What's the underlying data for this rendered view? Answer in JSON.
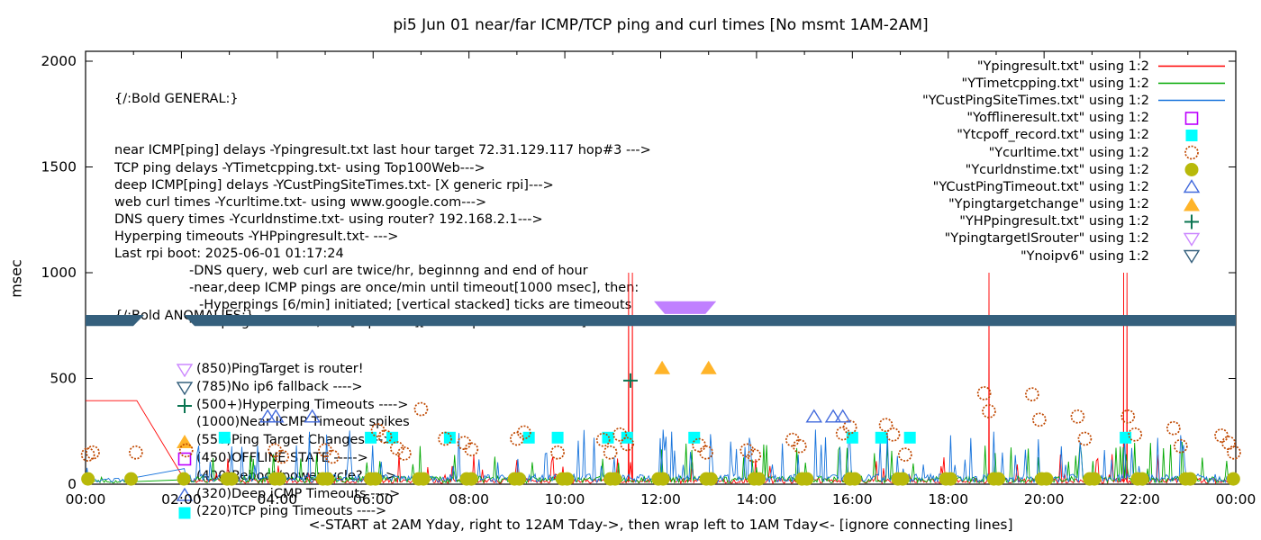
{
  "title": "pi5 Jun 01  near/far ICMP/TCP ping and curl times [No msmt 1AM-2AM]",
  "general_block": {
    "heading": "{/:Bold GENERAL:}",
    "lines": [
      {
        "text": "near ICMP[ping] delays -Ypingresult.txt last hour target 72.31.129.117 hop#3 --->",
        "indent": 0
      },
      {
        "text": "TCP ping delays -YTimetcpping.txt- using Top100Web--->",
        "indent": 0
      },
      {
        "text": "deep ICMP[ping] delays -YCustPingSiteTimes.txt- [X generic rpi]--->",
        "indent": 0
      },
      {
        "text": "web curl times -Ycurltime.txt- using www.google.com--->",
        "indent": 0
      },
      {
        "text": "DNS query times -Ycurldnstime.txt- using router? 192.168.2.1--->",
        "indent": 0
      },
      {
        "text": "Hyperping timeouts -YHPpingresult.txt- --->",
        "indent": 0
      },
      {
        "text": "Last rpi boot: 2025-06-01 01:17:24",
        "indent": 0
      },
      {
        "text": "-DNS query, web curl are twice/hr, beginnng and end of hour",
        "indent": 1
      },
      {
        "text": "-near,deep ICMP pings are once/min until timeout[1000 msec], then:",
        "indent": 1
      },
      {
        "text": "-Hyperpings [6/min] initiated; [vertical stacked] ticks are timeouts",
        "indent": 2
      },
      {
        "text": "-TCP pings are once/min [if plotted][use Ytcpoff for timeouts]",
        "indent": 1
      }
    ]
  },
  "anomalies_block": {
    "heading": "{/:Bold ANOMALIES:}",
    "items": [
      {
        "marker": "tri-down-open",
        "color": "#cc88ff",
        "text": "(850)PingTarget is router!"
      },
      {
        "marker": "tri-down-open",
        "color": "#35607d",
        "text": "(785)No ip6 fallback ---->",
        "obscured_by_band": true
      },
      {
        "marker": "plus",
        "color": "#0b7552",
        "text": "(500+)Hyperping Timeouts ---->"
      },
      {
        "marker": "none",
        "color": "#000000",
        "text": "(1000)Near ICMP Timeout spikes"
      },
      {
        "marker": "tri-up-filled",
        "color": "#ffb429",
        "text": "(550)Ping Target Changes --->"
      },
      {
        "marker": "square-open",
        "color": "#bd00ff",
        "text": "(450)OFFLINE STATE ----->"
      },
      {
        "marker": "none",
        "color": "#000000",
        "text": "(400)Reboot/powercycle? ---->"
      },
      {
        "marker": "tri-up-open",
        "color": "#4169dc",
        "text": "(320)Deep iCMP Timeouts ---->"
      },
      {
        "marker": "square-filled",
        "color": "#00ffff",
        "text": "(220)TCP ping Timeouts ---->"
      }
    ]
  },
  "legend": [
    {
      "label": "\"Ypingresult.txt\" using 1:2",
      "swatch": "line",
      "color": "#ff0000"
    },
    {
      "label": "\"YTimetcpping.txt\" using 1:2",
      "swatch": "line",
      "color": "#00a800"
    },
    {
      "label": "\"YCustPingSiteTimes.txt\" using 1:2",
      "swatch": "line",
      "color": "#1874dc"
    },
    {
      "label": "\"Yofflineresult.txt\" using 1:2",
      "swatch": "square-open",
      "color": "#bd00ff"
    },
    {
      "label": "\"Ytcpoff_record.txt\" using 1:2",
      "swatch": "square-filled",
      "color": "#00ffff"
    },
    {
      "label": "\"Ycurltime.txt\" using 1:2",
      "swatch": "circle-open",
      "color": "#c04800"
    },
    {
      "label": "\"Ycurldnstime.txt\" using 1:2",
      "swatch": "circle-filled",
      "color": "#b8b90a"
    },
    {
      "label": "\"YCustPingTimeout.txt\" using 1:2",
      "swatch": "tri-up-open",
      "color": "#4169dc"
    },
    {
      "label": "\"Ypingtargetchange\" using 1:2",
      "swatch": "tri-up-filled",
      "color": "#ffb429"
    },
    {
      "label": "\"YHPpingresult.txt\" using 1:2",
      "swatch": "plus",
      "color": "#0b7552"
    },
    {
      "label": "\"YpingtargetISrouter\" using 1:2",
      "swatch": "tri-down-open",
      "color": "#cc88ff"
    },
    {
      "label": "\"Ynoipv6\" using 1:2",
      "swatch": "tri-down-open",
      "color": "#35607d"
    }
  ],
  "chart_data": {
    "type": "line+scatter",
    "x": {
      "label": "<-START at 2AM Yday, right to 12AM Tday->, then wrap left to 1AM Tday<- [ignore connecting lines]",
      "unit": "hour of day",
      "min": 0,
      "max": 24,
      "major_tick_step_hours": 2,
      "minor_tick_step_hours": 1,
      "tick_labels": [
        "00:00",
        "02:00",
        "04:00",
        "06:00",
        "08:00",
        "10:00",
        "12:00",
        "14:00",
        "16:00",
        "18:00",
        "20:00",
        "22:00",
        "00:00"
      ]
    },
    "y": {
      "label": "msec",
      "min": 0,
      "max": 2000,
      "ticks": [
        0,
        500,
        1000,
        1500,
        2000
      ]
    },
    "grid": false,
    "legend_position": "top-right",
    "series": [
      {
        "id": "near-icmp",
        "label": "Ypingresult.txt (near ICMP ping)",
        "kind": "noise-line",
        "color": "#ff0000",
        "flat_segment_msec": 395,
        "flat_until_hour": 1.07,
        "gap_hours": [
          1.07,
          2.07
        ],
        "timeout_value_msec": 1000,
        "timeout_spikes_hours": [
          11.33,
          11.41,
          18.85,
          21.66,
          21.73
        ],
        "noise": {
          "base_min": 4,
          "base_max": 28,
          "spike_prob": 0.05,
          "spike_min": 40,
          "spike_max": 150,
          "seed": 11
        }
      },
      {
        "id": "tcp-ping",
        "label": "YTimetcpping.txt (TCP ping)",
        "kind": "noise-line",
        "color": "#00a800",
        "gap_hours": [
          1.02,
          2.06
        ],
        "noise": {
          "base_min": 6,
          "base_max": 38,
          "spike_prob": 0.06,
          "spike_min": 60,
          "spike_max": 200,
          "seed": 22
        }
      },
      {
        "id": "deep-icmp",
        "label": "YCustPingSiteTimes.txt (deep ICMP ping)",
        "kind": "noise-line",
        "color": "#1874dc",
        "gap_hours": [
          1.02,
          2.06
        ],
        "noise": {
          "base_min": 8,
          "base_max": 48,
          "spike_prob": 0.08,
          "spike_min": 70,
          "spike_max": 260,
          "seed": 33
        }
      },
      {
        "id": "tcp-timeouts",
        "label": "Ytcpoff_record.txt (TCP ping timeouts)",
        "kind": "scatter",
        "marker": "square-filled",
        "color": "#00ffff",
        "value_msec": 220,
        "hours": [
          2.9,
          5.95,
          6.4,
          7.6,
          9.25,
          9.85,
          10.9,
          11.3,
          12.7,
          16.0,
          16.6,
          17.2,
          21.7
        ]
      },
      {
        "id": "curl",
        "label": "Ycurltime.txt (web curl)",
        "kind": "scatter",
        "marker": "circle-open",
        "color": "#c04800",
        "points": [
          [
            0.05,
            140
          ],
          [
            0.15,
            150
          ],
          [
            1.05,
            150
          ],
          [
            2.1,
            160
          ],
          [
            3.95,
            160
          ],
          [
            4.1,
            130
          ],
          [
            5.0,
            160
          ],
          [
            5.15,
            130
          ],
          [
            6.1,
            255
          ],
          [
            6.25,
            225
          ],
          [
            6.5,
            170
          ],
          [
            6.65,
            145
          ],
          [
            7.0,
            355
          ],
          [
            7.5,
            215
          ],
          [
            7.9,
            195
          ],
          [
            8.05,
            165
          ],
          [
            9.0,
            215
          ],
          [
            9.15,
            245
          ],
          [
            9.85,
            150
          ],
          [
            10.8,
            210
          ],
          [
            10.95,
            150
          ],
          [
            11.15,
            235
          ],
          [
            11.3,
            190
          ],
          [
            12.8,
            185
          ],
          [
            12.95,
            150
          ],
          [
            13.8,
            160
          ],
          [
            13.95,
            135
          ],
          [
            14.75,
            210
          ],
          [
            14.9,
            180
          ],
          [
            15.8,
            240
          ],
          [
            15.95,
            270
          ],
          [
            16.7,
            280
          ],
          [
            16.85,
            235
          ],
          [
            17.1,
            140
          ],
          [
            18.75,
            430
          ],
          [
            18.85,
            345
          ],
          [
            19.75,
            425
          ],
          [
            19.9,
            305
          ],
          [
            20.7,
            320
          ],
          [
            20.85,
            215
          ],
          [
            21.75,
            320
          ],
          [
            21.9,
            235
          ],
          [
            22.7,
            265
          ],
          [
            22.85,
            180
          ],
          [
            23.7,
            230
          ],
          [
            23.85,
            195
          ],
          [
            23.97,
            150
          ]
        ]
      },
      {
        "id": "dns",
        "label": "Ycurldnstime.txt (DNS query)",
        "kind": "scatter",
        "marker": "circle-filled",
        "color": "#b8b90a",
        "value_msec": 25,
        "hours": [
          0.05,
          0.95,
          2.05,
          2.95,
          3.05,
          3.95,
          4.05,
          4.95,
          5.05,
          5.95,
          6.05,
          6.95,
          7.05,
          7.95,
          8.05,
          8.95,
          9.05,
          9.95,
          10.05,
          10.95,
          11.05,
          11.95,
          12.05,
          12.95,
          13.05,
          13.95,
          14.05,
          14.95,
          15.05,
          15.95,
          16.05,
          16.95,
          17.05,
          17.95,
          18.05,
          18.95,
          19.05,
          19.95,
          20.05,
          20.95,
          21.05,
          21.95,
          22.05,
          22.95,
          23.05,
          23.95
        ]
      },
      {
        "id": "deep-timeouts",
        "label": "YCustPingTimeout.txt (deep ICMP timeouts)",
        "kind": "scatter",
        "marker": "tri-up-open",
        "color": "#4169dc",
        "value_msec": 320,
        "hours": [
          3.8,
          3.97,
          4.73,
          15.2,
          15.6,
          15.8
        ]
      },
      {
        "id": "target-change",
        "label": "Ypingtargetchange (ping target changes)",
        "kind": "scatter",
        "marker": "tri-up-filled",
        "color": "#ffb429",
        "value_msec": 550,
        "hours": [
          12.03,
          13.0
        ]
      },
      {
        "id": "hyperping",
        "label": "YHPpingresult.txt (hyperping timeouts)",
        "kind": "scatter",
        "marker": "plus",
        "color": "#0b7552",
        "points": [
          [
            11.37,
            490
          ]
        ]
      },
      {
        "id": "target-is-router",
        "label": "YpingtargetISrouter",
        "kind": "band",
        "color": "#c080ff",
        "value_msec": 850,
        "top_msec": 865,
        "bottom_msec": 805,
        "segments_hours": [
          [
            11.86,
            13.16
          ]
        ]
      },
      {
        "id": "noipv6",
        "label": "Ynoipv6",
        "kind": "band",
        "color": "#35607d",
        "value_msec": 785,
        "top_msec": 800,
        "bottom_msec": 748,
        "segments_hours": [
          [
            -0.2,
            1.22
          ],
          [
            2.05,
            24.2
          ]
        ]
      }
    ]
  }
}
